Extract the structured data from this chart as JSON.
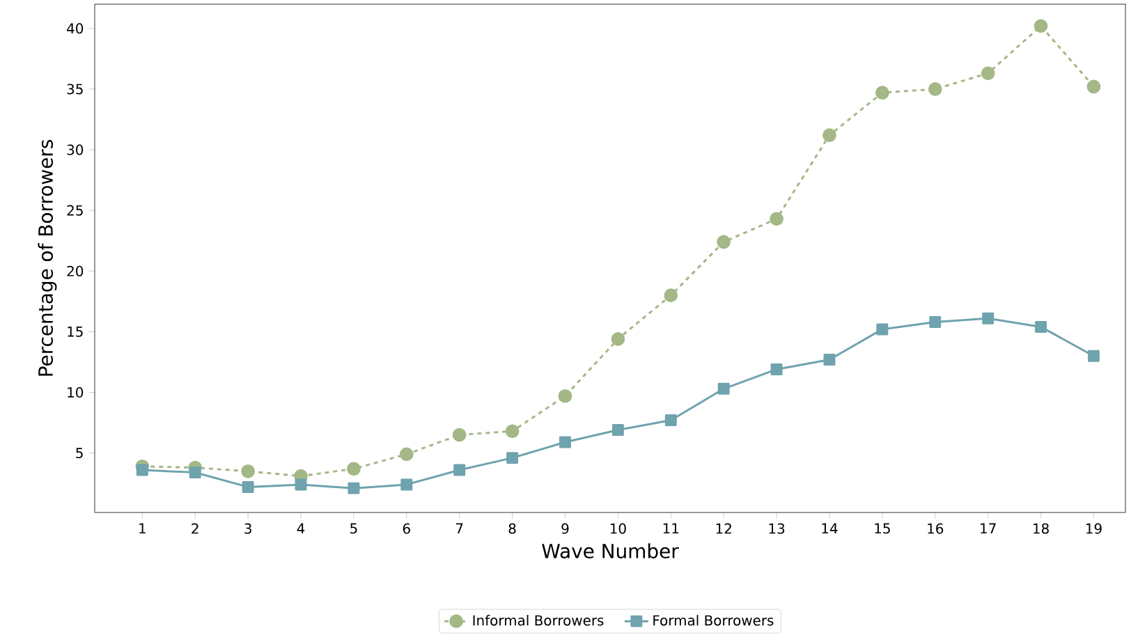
{
  "chart_data": {
    "type": "line",
    "xlabel": "Wave Number",
    "ylabel": "Percentage of Borrowers",
    "categories": [
      "1",
      "2",
      "3",
      "4",
      "5",
      "6",
      "7",
      "8",
      "9",
      "10",
      "11",
      "12",
      "13",
      "14",
      "15",
      "16",
      "17",
      "18",
      "19"
    ],
    "series": [
      {
        "name": "Informal Borrowers",
        "color": "#a3b886",
        "marker": "circle",
        "line_style": "dashed",
        "values": [
          3.9,
          3.8,
          3.5,
          3.1,
          3.7,
          4.9,
          6.5,
          6.8,
          9.7,
          14.4,
          18.0,
          22.4,
          24.3,
          31.2,
          34.7,
          35.0,
          36.3,
          40.2,
          35.2
        ]
      },
      {
        "name": "Formal Borrowers",
        "color": "#6fa3ae",
        "marker": "square",
        "line_style": "solid",
        "values": [
          3.6,
          3.4,
          2.2,
          2.4,
          2.1,
          2.4,
          3.6,
          4.6,
          5.9,
          6.9,
          7.7,
          10.3,
          11.9,
          12.7,
          15.2,
          15.8,
          16.1,
          15.4,
          13.0
        ]
      }
    ],
    "ylim": [
      0.1,
      42.0
    ],
    "yticks": [
      5,
      10,
      15,
      20,
      25,
      30,
      35,
      40
    ],
    "grid": false,
    "legend": "bottom"
  }
}
